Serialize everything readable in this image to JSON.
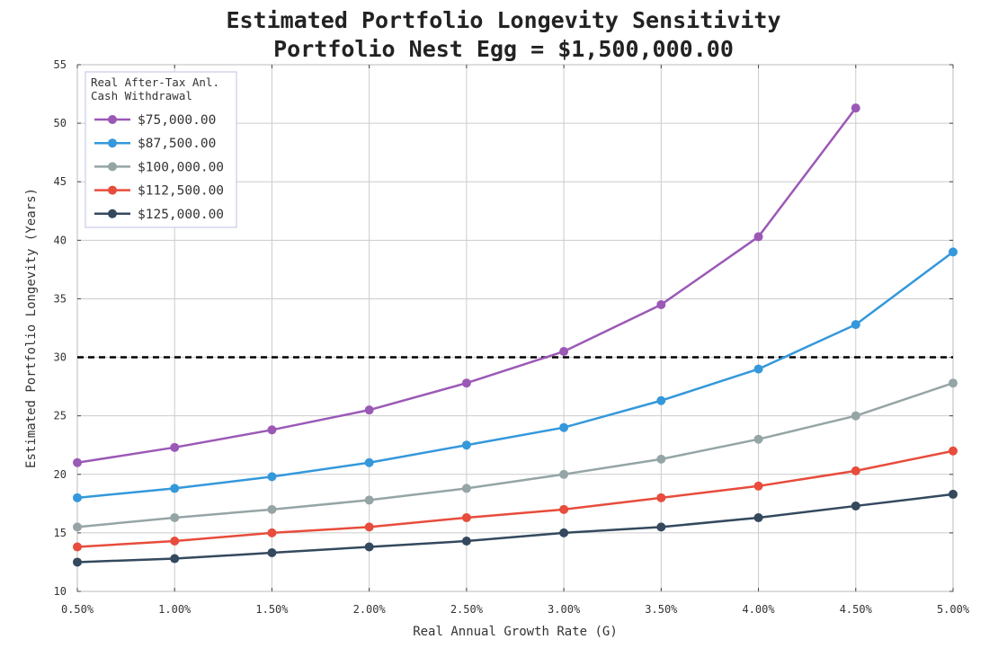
{
  "chart_data": {
    "type": "line",
    "title": "Estimated Portfolio Longevity Sensitivity",
    "subtitle": "Portfolio Nest Egg = $1,500,000.00",
    "xlabel": "Real Annual Growth Rate (G)",
    "ylabel": "Estimated Portfolio Longevity (Years)",
    "x": [
      0.5,
      1.0,
      1.5,
      2.0,
      2.5,
      3.0,
      3.5,
      4.0,
      4.5,
      5.0
    ],
    "x_tick_labels": [
      "0.50%",
      "1.00%",
      "1.50%",
      "2.00%",
      "2.50%",
      "3.00%",
      "3.50%",
      "4.00%",
      "4.50%",
      "5.00%"
    ],
    "xlim": [
      0.5,
      5.0
    ],
    "ylim": [
      10,
      55
    ],
    "y_ticks": [
      10,
      15,
      20,
      25,
      30,
      35,
      40,
      45,
      50,
      55
    ],
    "grid": true,
    "reference_line": {
      "y": 30,
      "style": "dashed",
      "color": "#000000"
    },
    "legend": {
      "position": "top-left",
      "title_lines": [
        "Real After-Tax Anl.",
        "Cash Withdrawal"
      ]
    },
    "series": [
      {
        "name": "$75,000.00",
        "color": "#9b59b6",
        "values": [
          21.0,
          22.3,
          23.8,
          25.5,
          27.8,
          30.5,
          34.5,
          40.3,
          51.3,
          null
        ]
      },
      {
        "name": "$87,500.00",
        "color": "#3498db",
        "values": [
          18.0,
          18.8,
          19.8,
          21.0,
          22.5,
          24.0,
          26.3,
          29.0,
          32.8,
          39.0
        ]
      },
      {
        "name": "$100,000.00",
        "color": "#95a5a6",
        "values": [
          15.5,
          16.3,
          17.0,
          17.8,
          18.8,
          20.0,
          21.3,
          23.0,
          25.0,
          27.8
        ]
      },
      {
        "name": "$112,500.00",
        "color": "#e74c3c",
        "values": [
          13.8,
          14.3,
          15.0,
          15.5,
          16.3,
          17.0,
          18.0,
          19.0,
          20.3,
          22.0
        ]
      },
      {
        "name": "$125,000.00",
        "color": "#34495e",
        "values": [
          12.5,
          12.8,
          13.3,
          13.8,
          14.3,
          15.0,
          15.5,
          16.3,
          17.3,
          18.3
        ]
      }
    ]
  }
}
